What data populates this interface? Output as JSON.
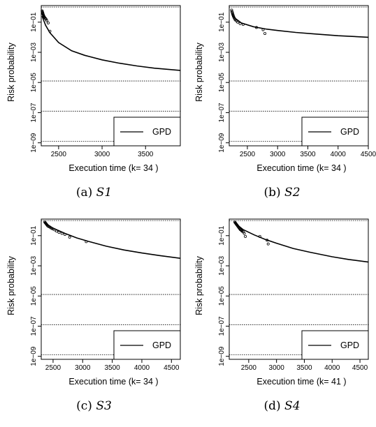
{
  "figure": {
    "panels": [
      {
        "caption": {
          "label": "(a)",
          "symbol": "S1"
        },
        "chart_data": {
          "type": "line",
          "xlabel": "Execution time (k= 34 )",
          "ylabel": "Risk probability",
          "xlim": [
            2300,
            3900
          ],
          "xticks": [
            2500,
            3000,
            3500
          ],
          "xticklabels": [
            "2500",
            "3000",
            "3500"
          ],
          "ylim_log10": [
            -9.2,
            0.1
          ],
          "yticks_log10": [
            -9,
            -7,
            -5,
            -3,
            -1
          ],
          "yticklabels": [
            "1e−09",
            "1e−07",
            "1e−05",
            "1e−03",
            "1e−01"
          ],
          "hlines_log10": [
            0,
            -4.9,
            -6.9,
            -8.9
          ],
          "legend": {
            "label": "GPD",
            "position": "bottom-right"
          },
          "series": [
            {
              "name": "GPD",
              "kind": "line",
              "x": [
                2310,
                2350,
                2400,
                2500,
                2650,
                2800,
                3000,
                3200,
                3400,
                3600,
                3900
              ],
              "y_log10": [
                -0.6,
                -1.2,
                -1.7,
                -2.35,
                -2.9,
                -3.2,
                -3.5,
                -3.72,
                -3.9,
                -4.05,
                -4.2
              ]
            },
            {
              "kind": "points",
              "x": [
                2310,
                2312,
                2315,
                2318,
                2320,
                2323,
                2326,
                2330,
                2335,
                2340,
                2348,
                2355,
                2365,
                2380,
                2400
              ],
              "y_log10": [
                -0.25,
                -0.3,
                -0.35,
                -0.4,
                -0.45,
                -0.5,
                -0.55,
                -0.6,
                -0.65,
                -0.7,
                -0.75,
                -0.8,
                -0.9,
                -1.05,
                -1.6
              ]
            }
          ]
        }
      },
      {
        "caption": {
          "label": "(b)",
          "symbol": "S2"
        },
        "chart_data": {
          "type": "line",
          "xlabel": "Execution time (k= 34 )",
          "ylabel": "Risk probability",
          "xlim": [
            2200,
            4500
          ],
          "xticks": [
            2500,
            3000,
            3500,
            4000,
            4500
          ],
          "xticklabels": [
            "2500",
            "3000",
            "3500",
            "4000",
            "4500"
          ],
          "ylim_log10": [
            -9.2,
            0.1
          ],
          "yticks_log10": [
            -9,
            -7,
            -5,
            -3,
            -1
          ],
          "yticklabels": [
            "1e−09",
            "1e−07",
            "1e−05",
            "1e−03",
            "1e−01"
          ],
          "hlines_log10": [
            0,
            -4.9,
            -6.9,
            -8.9
          ],
          "legend": {
            "label": "GPD",
            "position": "bottom-right"
          },
          "series": [
            {
              "name": "GPD",
              "kind": "line",
              "x": [
                2240,
                2300,
                2400,
                2600,
                2800,
                3000,
                3300,
                3600,
                4000,
                4500
              ],
              "y_log10": [
                -0.45,
                -0.75,
                -1.05,
                -1.3,
                -1.45,
                -1.55,
                -1.68,
                -1.78,
                -1.9,
                -2.0
              ]
            },
            {
              "kind": "points",
              "x": [
                2240,
                2245,
                2250,
                2255,
                2260,
                2265,
                2270,
                2280,
                2290,
                2300,
                2320,
                2340,
                2380,
                2430,
                2650,
                2760,
                2790
              ],
              "y_log10": [
                -0.2,
                -0.3,
                -0.35,
                -0.42,
                -0.5,
                -0.55,
                -0.62,
                -0.7,
                -0.78,
                -0.85,
                -0.92,
                -1.0,
                -1.1,
                -1.15,
                -1.35,
                -1.5,
                -1.75
              ]
            }
          ]
        }
      },
      {
        "caption": {
          "label": "(c)",
          "symbol": "S3"
        },
        "chart_data": {
          "type": "line",
          "xlabel": "Execution time (k= 34 )",
          "ylabel": "Risk probability",
          "xlim": [
            2300,
            4650
          ],
          "xticks": [
            2500,
            3000,
            3500,
            4000,
            4500
          ],
          "xticklabels": [
            "2500",
            "3000",
            "3500",
            "4000",
            "4500"
          ],
          "ylim_log10": [
            -9.2,
            0.1
          ],
          "yticks_log10": [
            -9,
            -7,
            -5,
            -3,
            -1
          ],
          "yticklabels": [
            "1e−09",
            "1e−07",
            "1e−05",
            "1e−03",
            "1e−01"
          ],
          "hlines_log10": [
            0,
            -4.9,
            -6.9,
            -8.9
          ],
          "legend": {
            "label": "GPD",
            "position": "bottom-right"
          },
          "series": [
            {
              "name": "GPD",
              "kind": "line",
              "x": [
                2350,
                2400,
                2500,
                2700,
                2900,
                3100,
                3400,
                3700,
                4000,
                4300,
                4650
              ],
              "y_log10": [
                -0.1,
                -0.25,
                -0.5,
                -0.85,
                -1.15,
                -1.38,
                -1.7,
                -1.95,
                -2.15,
                -2.32,
                -2.5
              ]
            },
            {
              "kind": "points",
              "x": [
                2360,
                2370,
                2380,
                2390,
                2400,
                2410,
                2420,
                2440,
                2460,
                2480,
                2500,
                2530,
                2560,
                2600,
                2650,
                2700,
                2780,
                3060
              ],
              "y_log10": [
                -0.1,
                -0.15,
                -0.2,
                -0.25,
                -0.3,
                -0.35,
                -0.38,
                -0.42,
                -0.48,
                -0.52,
                -0.56,
                -0.62,
                -0.7,
                -0.78,
                -0.85,
                -0.92,
                -1.1,
                -1.4
              ]
            }
          ]
        }
      },
      {
        "caption": {
          "label": "(d)",
          "symbol": "S4"
        },
        "chart_data": {
          "type": "line",
          "xlabel": "Execution time (k= 41 )",
          "ylabel": "Risk probability",
          "xlim": [
            2150,
            4650
          ],
          "xticks": [
            2500,
            3000,
            3500,
            4000,
            4500
          ],
          "xticklabels": [
            "2500",
            "3000",
            "3500",
            "4000",
            "4500"
          ],
          "ylim_log10": [
            -9.2,
            0.1
          ],
          "yticks_log10": [
            -9,
            -7,
            -5,
            -3,
            -1
          ],
          "yticklabels": [
            "1e−09",
            "1e−07",
            "1e−05",
            "1e−03",
            "1e−01"
          ],
          "hlines_log10": [
            0,
            -4.9,
            -6.9,
            -8.9
          ],
          "legend": {
            "label": "GPD",
            "position": "bottom-right"
          },
          "series": [
            {
              "name": "GPD",
              "kind": "line",
              "x": [
                2250,
                2300,
                2400,
                2600,
                2800,
                3000,
                3300,
                3600,
                4000,
                4300,
                4650
              ],
              "y_log10": [
                -0.1,
                -0.3,
                -0.6,
                -0.95,
                -1.25,
                -1.5,
                -1.85,
                -2.1,
                -2.4,
                -2.58,
                -2.75
              ]
            },
            {
              "kind": "points",
              "x": [
                2250,
                2260,
                2270,
                2280,
                2290,
                2300,
                2310,
                2320,
                2330,
                2340,
                2350,
                2360,
                2370,
                2380,
                2400,
                2420,
                2440,
                2700,
                2830,
                2850
              ],
              "y_log10": [
                -0.1,
                -0.15,
                -0.2,
                -0.25,
                -0.3,
                -0.35,
                -0.4,
                -0.45,
                -0.5,
                -0.55,
                -0.6,
                -0.62,
                -0.65,
                -0.7,
                -0.75,
                -0.85,
                -1.05,
                -1.05,
                -1.3,
                -1.55
              ]
            }
          ]
        }
      }
    ]
  }
}
